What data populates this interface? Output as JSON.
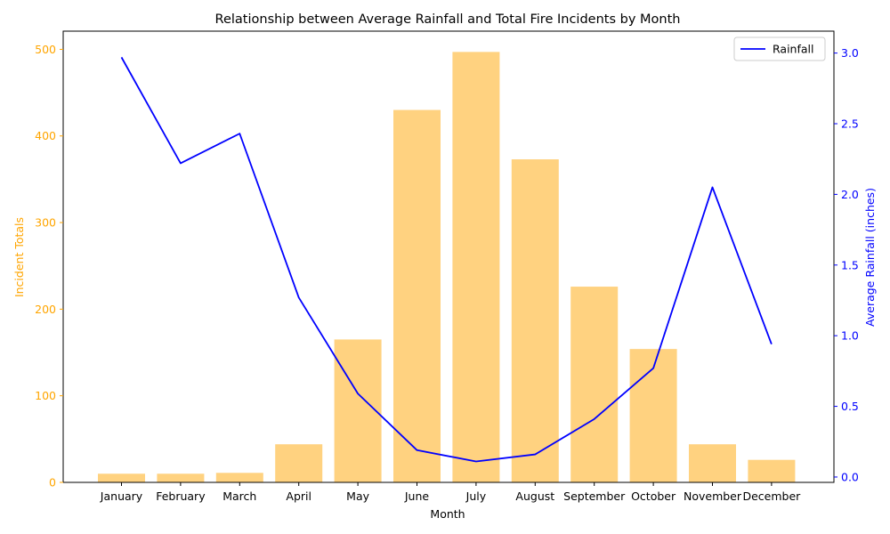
{
  "chart_data": {
    "type": "bar",
    "title": "Relationship between Average Rainfall and Total Fire Incidents by Month",
    "xlabel": "Month",
    "ylabel_left": "Incident Totals",
    "ylabel_right": "Average Rainfall (inches)",
    "categories": [
      "January",
      "February",
      "March",
      "April",
      "May",
      "June",
      "July",
      "August",
      "September",
      "October",
      "November",
      "December"
    ],
    "bar_series": {
      "name": "",
      "values": [
        10,
        10,
        11,
        44,
        165,
        430,
        497,
        373,
        226,
        154,
        44,
        26
      ],
      "color": "#ffd280"
    },
    "line_series": {
      "name": "Rainfall",
      "values": [
        2.97,
        2.22,
        2.43,
        1.27,
        0.59,
        0.19,
        0.11,
        0.16,
        0.41,
        0.77,
        2.05,
        0.94
      ],
      "color": "#0000ff"
    },
    "ylim_left": [
      0,
      521
    ],
    "ylim_right": [
      -0.038,
      3.155
    ],
    "yticks_left": [
      0,
      100,
      200,
      300,
      400,
      500
    ],
    "yticks_right": [
      0.0,
      0.5,
      1.0,
      1.5,
      2.0,
      2.5,
      3.0
    ],
    "left_axis_color": "#ffa500",
    "right_axis_color": "#0000ff",
    "legend": {
      "placement": "top-right",
      "entries": [
        "Rainfall"
      ]
    },
    "grid": false
  }
}
